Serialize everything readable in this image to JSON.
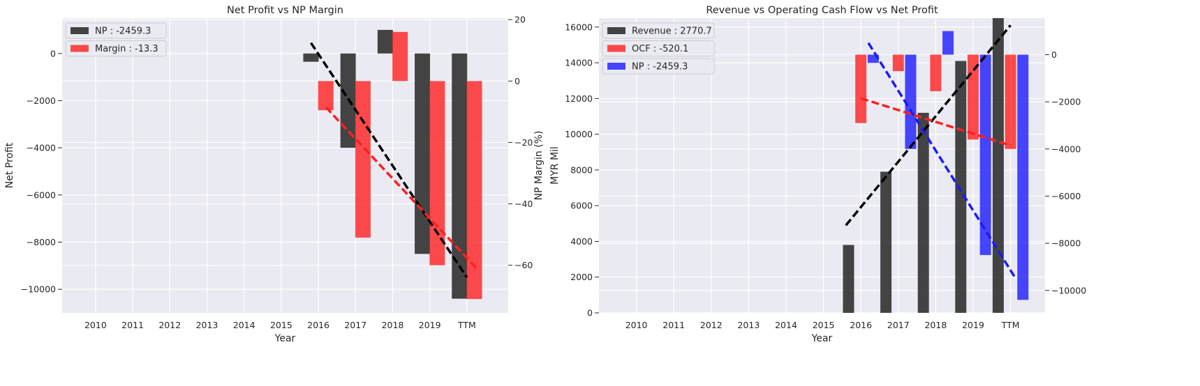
{
  "chart_data": [
    {
      "type": "bar",
      "title": "Net Profit vs NP Margin",
      "xlabel": "Year",
      "ylabel": "Net Profit",
      "y2label": "NP Margin (%)",
      "categories": [
        "2010",
        "2011",
        "2012",
        "2013",
        "2014",
        "2015",
        "2016",
        "2017",
        "2018",
        "2019",
        "TTM"
      ],
      "ylim": [
        -11000,
        1500
      ],
      "y2lim": [
        -75.5,
        20.5
      ],
      "yticks": [
        0,
        -2000,
        -4000,
        -6000,
        -8000,
        -10000
      ],
      "y2ticks": [
        20,
        0,
        -20,
        -40,
        -60
      ],
      "series": [
        {
          "name": "NP : -2459.3",
          "axis": "left",
          "color": "#262626",
          "opacity": 0.85,
          "offset": -0.2,
          "values": [
            null,
            null,
            null,
            null,
            null,
            null,
            -350,
            -4000,
            1000,
            -8500,
            -10400
          ]
        },
        {
          "name": "Margin : -13.3",
          "axis": "right",
          "color": "#ff2020",
          "opacity": 0.8,
          "offset": 0.2,
          "values": [
            null,
            null,
            null,
            null,
            null,
            null,
            -9.5,
            -51,
            16,
            -60,
            -71
          ]
        }
      ],
      "trendlines": [
        {
          "axis": "left",
          "color": "#000000",
          "from": [
            5.8,
            450
          ],
          "to": [
            10.0,
            -9500
          ]
        },
        {
          "axis": "right",
          "color": "#ff2020",
          "from": [
            6.2,
            -8.5
          ],
          "to": [
            10.3,
            -61.5
          ]
        }
      ],
      "legend": "top-left",
      "grid": true
    },
    {
      "type": "bar",
      "title": "Revenue vs Operating Cash Flow vs Net Profit",
      "xlabel": "Year",
      "ylabel": "MYR Mil",
      "categories": [
        "2010",
        "2011",
        "2012",
        "2013",
        "2014",
        "2015",
        "2016",
        "2017",
        "2018",
        "2019",
        "TTM"
      ],
      "ylim": [
        0,
        16500
      ],
      "y2lim": [
        -10950,
        1550
      ],
      "yticks": [
        0,
        2000,
        4000,
        6000,
        8000,
        10000,
        12000,
        14000,
        16000
      ],
      "y2ticks": [
        0,
        -2000,
        -4000,
        -6000,
        -8000,
        -10000
      ],
      "series": [
        {
          "name": "Revenue : 2770.7",
          "axis": "left",
          "color": "#262626",
          "opacity": 0.85,
          "offset": -0.33,
          "values": [
            null,
            null,
            null,
            null,
            null,
            null,
            3800,
            7900,
            11200,
            14100,
            16500
          ]
        },
        {
          "name": "OCF : -520.1",
          "axis": "right",
          "color": "#ff2020",
          "opacity": 0.8,
          "offset": 0,
          "values": [
            null,
            null,
            null,
            null,
            null,
            null,
            -2900,
            -700,
            -1550,
            -3600,
            -4000
          ]
        },
        {
          "name": "NP : -2459.3",
          "axis": "right",
          "color": "#1a1aff",
          "opacity": 0.8,
          "offset": 0.33,
          "values": [
            null,
            null,
            null,
            null,
            null,
            null,
            -350,
            -4000,
            1000,
            -8500,
            -10400
          ]
        }
      ],
      "trendlines": [
        {
          "axis": "left",
          "color": "#000000",
          "from": [
            5.6,
            4900
          ],
          "to": [
            10.0,
            16100
          ]
        },
        {
          "axis": "right",
          "color": "#ff2020",
          "from": [
            6.0,
            -1850
          ],
          "to": [
            10.0,
            -3850
          ]
        },
        {
          "axis": "right",
          "color": "#1a1aff",
          "from": [
            6.2,
            500
          ],
          "to": [
            10.1,
            -9400
          ]
        }
      ],
      "legend": "top-left",
      "grid": true
    }
  ]
}
